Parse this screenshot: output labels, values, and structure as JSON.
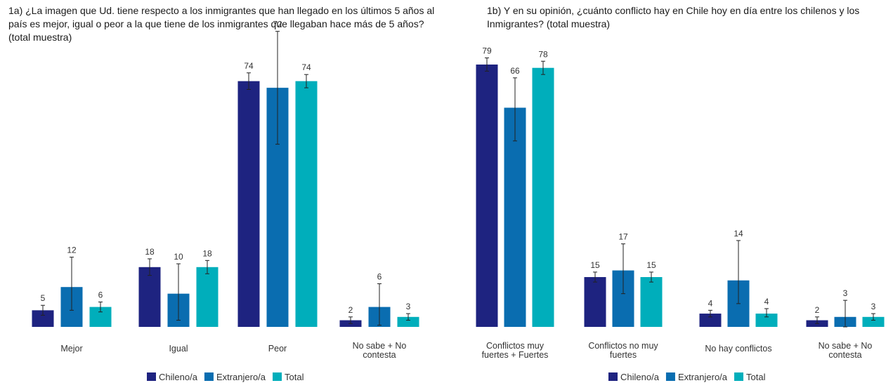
{
  "colors": {
    "chileno": "#1e2380",
    "extranjero": "#0a6db0",
    "total": "#00aebb",
    "error": "#222222"
  },
  "chart_data": [
    {
      "type": "bar",
      "title": "1a) ¿La imagen que Ud. tiene respecto a los inmigrantes que han llegado en los últimos 5 años al país es mejor, igual o peor a la que tiene de los inmigrantes que llegaban hace más de 5 años? (total muestra)",
      "categories": [
        [
          "Mejor"
        ],
        [
          "Igual"
        ],
        [
          "Peor"
        ],
        [
          "No sabe + No",
          "contesta"
        ]
      ],
      "series": [
        {
          "name": "Chileno/a",
          "values": [
            5,
            18,
            74,
            2
          ],
          "error_low": [
            3.5,
            15.5,
            71.5,
            1
          ],
          "error_high": [
            6.5,
            20.5,
            76.5,
            3
          ]
        },
        {
          "name": "Extranjero/a",
          "values": [
            12,
            10,
            72,
            6
          ],
          "error_low": [
            5,
            2,
            55,
            0.5
          ],
          "error_high": [
            21,
            19,
            89,
            13
          ]
        },
        {
          "name": "Total",
          "values": [
            6,
            18,
            74,
            3
          ],
          "error_low": [
            4.5,
            16,
            72,
            2
          ],
          "error_high": [
            7.5,
            20,
            76,
            4
          ]
        }
      ],
      "ylim": [
        0,
        80
      ],
      "legend": "bottom"
    },
    {
      "type": "bar",
      "title": "1b) Y en su opinión, ¿cuánto conflicto hay en Chile hoy en día entre los chilenos y los Inmigrantes? (total muestra)",
      "categories": [
        [
          "Conflictos muy",
          "fuertes + Fuertes"
        ],
        [
          "Conflictos no muy",
          "fuertes"
        ],
        [
          "No hay conflictos"
        ],
        [
          "No sabe + No",
          "contesta"
        ]
      ],
      "series": [
        {
          "name": "Chileno/a",
          "values": [
            79,
            15,
            4,
            2
          ],
          "error_low": [
            77,
            13.5,
            3,
            1
          ],
          "error_high": [
            81,
            16.5,
            5,
            3
          ]
        },
        {
          "name": "Extranjero/a",
          "values": [
            66,
            17,
            14,
            3
          ],
          "error_low": [
            56,
            10,
            7,
            0
          ],
          "error_high": [
            75,
            25,
            26,
            8
          ]
        },
        {
          "name": "Total",
          "values": [
            78,
            15,
            4,
            3
          ],
          "error_low": [
            76,
            13.5,
            3,
            2
          ],
          "error_high": [
            80,
            16.5,
            5.5,
            4
          ]
        }
      ],
      "ylim": [
        0,
        80
      ],
      "legend": "bottom"
    }
  ]
}
